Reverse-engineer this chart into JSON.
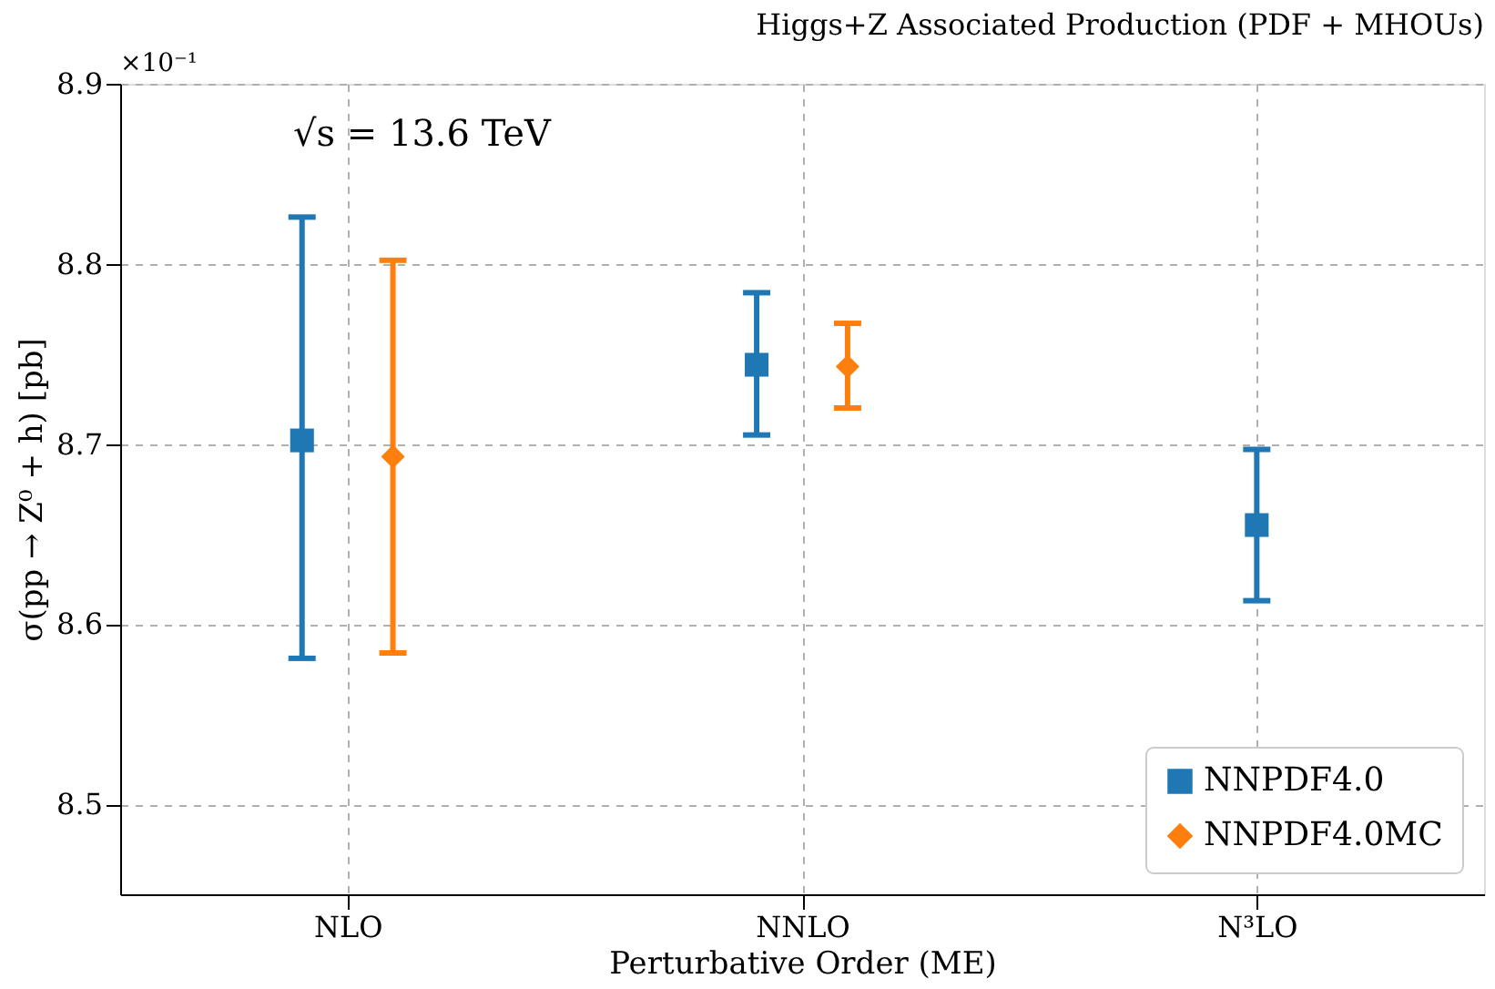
{
  "chart_data": {
    "type": "scatter",
    "title": "Higgs+Z Associated Production (PDF + MHOUs)",
    "xlabel": "Perturbative Order (ME)",
    "ylabel": "σ(pp → Z⁰ + h) [pb]",
    "categories": [
      "NLO",
      "NNLO",
      "N³LO"
    ],
    "series": [
      {
        "name": "NNPDF4.0",
        "color": "#1f77b4",
        "marker": "square",
        "values": [
          8.702,
          8.744,
          8.655
        ],
        "errors": [
          [
            8.581,
            8.826
          ],
          [
            8.705,
            8.784
          ],
          [
            8.613,
            8.697
          ]
        ]
      },
      {
        "name": "NNPDF4.0MC",
        "color": "#ff7f0e",
        "marker": "diamond",
        "values": [
          8.693,
          8.743,
          null
        ],
        "errors": [
          [
            8.584,
            8.802
          ],
          [
            8.72,
            8.767
          ],
          null
        ]
      }
    ],
    "ylim": [
      8.45,
      8.9
    ],
    "yticks": [
      8.5,
      8.6,
      8.7,
      8.8,
      8.9
    ],
    "grid": true,
    "legend": "bottom right",
    "annotations": [
      "×10⁻¹",
      "√s = 13.6 TeV"
    ]
  }
}
